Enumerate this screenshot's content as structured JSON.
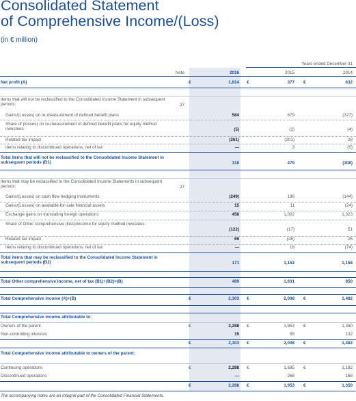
{
  "title_line1": "Consolidated Statement",
  "title_line2": "of Comprehensive Income/(Loss)",
  "subtitle": "(in € million)",
  "header": {
    "period": "Years ended December 31",
    "note": "Note",
    "years": [
      "2016",
      "2015",
      "2014"
    ]
  },
  "rows": [
    {
      "label": "Net profit (A)",
      "bold": true,
      "cur": [
        "€",
        "€",
        "€"
      ],
      "values": [
        "1,814",
        "377",
        "632"
      ]
    },
    {
      "label": "Items that will not be reclassified to the Consolidated Income Statement in subsequent periods:",
      "note": "27",
      "values": [
        "",
        "",
        ""
      ]
    },
    {
      "label": "Gains/(Losses) on re-measurement of defined benefit plans",
      "indent": true,
      "values": [
        "584",
        "679",
        "(327)"
      ]
    },
    {
      "label": "Share of (losses) on re-measurement of defined benefit plans for equity method investees",
      "indent": true,
      "values": [
        "(5)",
        "(2)",
        "(4)"
      ]
    },
    {
      "label": "Related tax impact",
      "indent": true,
      "values": [
        "(261)",
        "(201)",
        "28"
      ]
    },
    {
      "label": "Items relating to discontinued operations, net of tax",
      "indent": true,
      "values": [
        "—",
        "3",
        "(5)"
      ]
    },
    {
      "label": "Total items that will not be reclassified to the Consolidated Income Statement in subsequent periods (B1)",
      "bold": true,
      "values": [
        "318",
        "479",
        "(308)"
      ]
    },
    {
      "label": "Items that may be reclassified to the Consolidated Income Statements in subsequent periods:",
      "note": "27",
      "values": [
        "",
        "",
        ""
      ]
    },
    {
      "label": "Gains/(Losses) on cash flow hedging instruments",
      "indent": true,
      "values": [
        "(249)",
        "186",
        "(144)"
      ]
    },
    {
      "label": "Gains/(Losses) on available-for-sale financial assets",
      "indent": true,
      "values": [
        "15",
        "11",
        "(24)"
      ]
    },
    {
      "label": "Exchange gains on translating foreign operations",
      "indent": true,
      "values": [
        "458",
        "1,002",
        "1,323"
      ]
    },
    {
      "label": "Share of Other comprehensive (loss)/income for equity method investees",
      "indent": true,
      "values": [
        "(122)",
        "(17)",
        "51"
      ]
    },
    {
      "label": "Related tax impact",
      "indent": true,
      "values": [
        "69",
        "(48)",
        "26"
      ]
    },
    {
      "label": "Items relating to discontinued operations, net of tax",
      "indent": true,
      "values": [
        "—",
        "18",
        "(74)"
      ]
    },
    {
      "label": "Total items that may be reclassified to the Consolidated Income Statement in subsequent periods (B2)",
      "bold": true,
      "values": [
        "171",
        "1,152",
        "1,158"
      ]
    },
    {
      "label": "Total Other comprehensive income, net of tax (B1)+(B2)=(B)",
      "bold": true,
      "values": [
        "489",
        "1,631",
        "850"
      ]
    },
    {
      "label": "Total Comprehensive income (A)+(B)",
      "bold": true,
      "cur": [
        "€",
        "€",
        "€"
      ],
      "values": [
        "2,303",
        "2,008",
        "1,482"
      ]
    },
    {
      "label": "Total Comprehensive income attributable to:",
      "bold": true,
      "values": [
        "",
        "",
        ""
      ]
    },
    {
      "label": "Owners of the parent",
      "cur": [
        "€",
        "€",
        "€"
      ],
      "values": [
        "2,288",
        "1,953",
        "1,350"
      ]
    },
    {
      "label": "Non-controlling interests",
      "values": [
        "15",
        "55",
        "132"
      ]
    },
    {
      "label": "",
      "bold": true,
      "cur": [
        "€",
        "€",
        "€"
      ],
      "values": [
        "2,303",
        "2,008",
        "1,482"
      ]
    },
    {
      "label": "Total Comprehensive income attributable to owners of the parent:",
      "bold": true,
      "values": [
        "",
        "",
        ""
      ]
    },
    {
      "label": "Continuing operations",
      "cur": [
        "€",
        "€",
        "€"
      ],
      "values": [
        "2,288",
        "1,685",
        "1,182"
      ]
    },
    {
      "label": "Discontinued operations",
      "values": [
        "—",
        "268",
        "168"
      ]
    },
    {
      "label": "",
      "bold": true,
      "cur": [
        "€",
        "€",
        "€"
      ],
      "values": [
        "2,288",
        "1,953",
        "1,350"
      ]
    }
  ],
  "footer": "The accompanying notes are an integral part of the Consolidated Financial Statements."
}
